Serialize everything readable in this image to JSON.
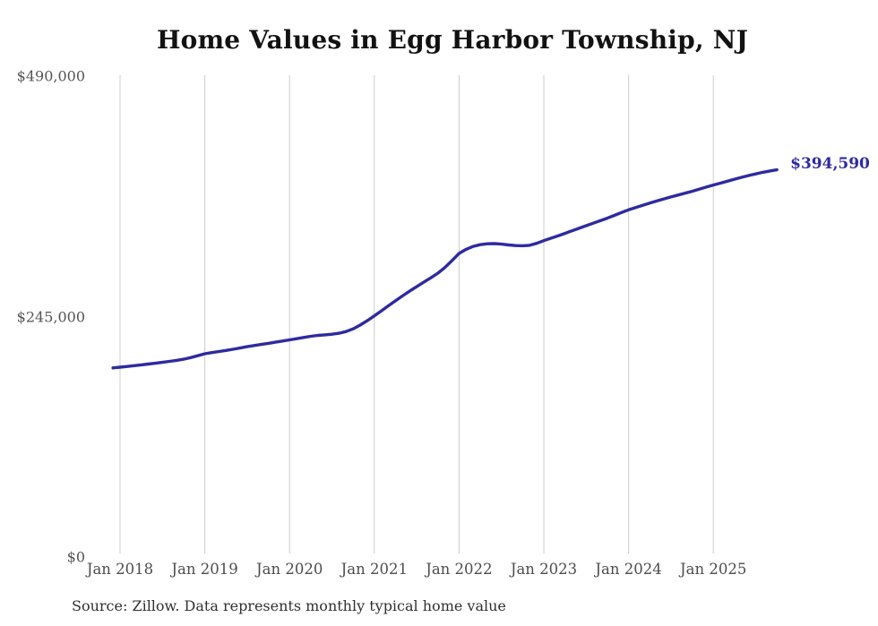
{
  "page": {
    "background": "#ffffff"
  },
  "chart_data": {
    "type": "line",
    "title": "Home Values in Egg Harbor Township, NJ",
    "source_note": "Source: Zillow. Data represents monthly typical home value",
    "end_label": "$394,590",
    "end_value": 394590,
    "ylim": [
      0,
      490000
    ],
    "y_tick_labels": [
      "$490,000",
      "$245,000",
      "$0"
    ],
    "y_tick_values": [
      490000,
      245000,
      0
    ],
    "x_tick_labels": [
      "Jan 2018",
      "Jan 2019",
      "Jan 2020",
      "Jan 2021",
      "Jan 2022",
      "Jan 2023",
      "Jan 2024",
      "Jan 2025"
    ],
    "grid": "vertical-gridlines-only",
    "legend": "none",
    "colors": {
      "line": "#2E2B9F",
      "end_label": "#2E2B9F",
      "grid": "#cccccc",
      "title": "#121212",
      "axis_text": "#4d4d4d",
      "source_text": "#303030"
    },
    "series": [
      {
        "name": "Typical home value",
        "x": [
          "2017-12",
          "2018-01",
          "2018-02",
          "2018-03",
          "2018-04",
          "2018-05",
          "2018-06",
          "2018-07",
          "2018-08",
          "2018-09",
          "2018-10",
          "2018-11",
          "2018-12",
          "2019-01",
          "2019-02",
          "2019-03",
          "2019-04",
          "2019-05",
          "2019-06",
          "2019-07",
          "2019-08",
          "2019-09",
          "2019-10",
          "2019-11",
          "2019-12",
          "2020-01",
          "2020-02",
          "2020-03",
          "2020-04",
          "2020-05",
          "2020-06",
          "2020-07",
          "2020-08",
          "2020-09",
          "2020-10",
          "2020-11",
          "2020-12",
          "2021-01",
          "2021-02",
          "2021-03",
          "2021-04",
          "2021-05",
          "2021-06",
          "2021-07",
          "2021-08",
          "2021-09",
          "2021-10",
          "2021-11",
          "2021-12",
          "2022-01",
          "2022-02",
          "2022-03",
          "2022-04",
          "2022-05",
          "2022-06",
          "2022-07",
          "2022-08",
          "2022-09",
          "2022-10",
          "2022-11",
          "2022-12",
          "2023-01",
          "2023-02",
          "2023-03",
          "2023-04",
          "2023-05",
          "2023-06",
          "2023-07",
          "2023-08",
          "2023-09",
          "2023-10",
          "2023-11",
          "2023-12",
          "2024-01",
          "2024-02",
          "2024-03",
          "2024-04",
          "2024-05",
          "2024-06",
          "2024-07",
          "2024-08",
          "2024-09",
          "2024-10",
          "2024-11",
          "2024-12",
          "2025-01",
          "2025-02",
          "2025-03",
          "2025-04",
          "2025-05",
          "2025-06",
          "2025-07",
          "2025-08",
          "2025-09",
          "2025-10"
        ],
        "values": [
          192700,
          193400,
          194200,
          195000,
          195800,
          196600,
          197500,
          198400,
          199400,
          200400,
          201600,
          203200,
          205100,
          207100,
          208300,
          209400,
          210500,
          211700,
          213000,
          214300,
          215500,
          216600,
          217700,
          218900,
          220100,
          221300,
          222500,
          223700,
          224900,
          225800,
          226400,
          227000,
          228000,
          229800,
          232500,
          236300,
          240800,
          245700,
          250800,
          256000,
          261100,
          266100,
          270900,
          275500,
          280000,
          284500,
          289300,
          295000,
          302000,
          309300,
          313500,
          316500,
          318300,
          319200,
          319400,
          318800,
          318000,
          317400,
          317200,
          317600,
          319600,
          322400,
          324800,
          327200,
          329800,
          332400,
          335000,
          337600,
          340200,
          342700,
          345300,
          348100,
          351000,
          353800,
          356100,
          358400,
          360600,
          362800,
          364900,
          366900,
          368800,
          370700,
          372700,
          374800,
          376900,
          379000,
          381000,
          383000,
          385000,
          386900,
          388700,
          390400,
          392000,
          393400,
          394590
        ]
      }
    ]
  }
}
